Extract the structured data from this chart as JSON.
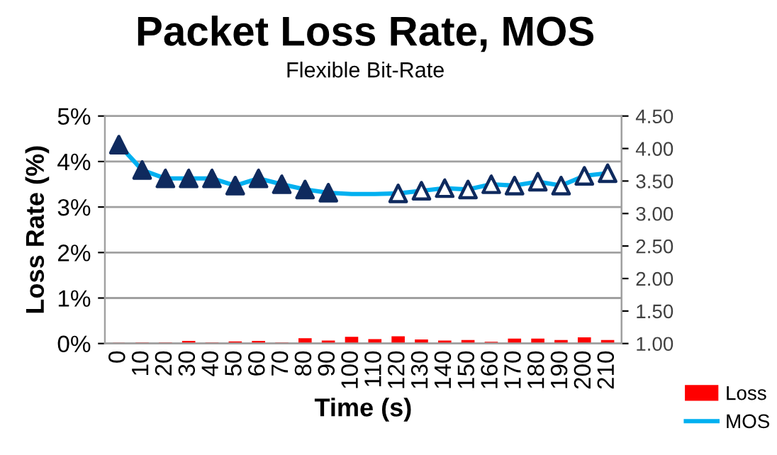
{
  "chart_data": {
    "type": "bar",
    "title": "Packet Loss Rate, MOS",
    "subtitle": "Flexible Bit-Rate",
    "xlabel": "Time (s)",
    "ylabel": "Loss Rate (%)",
    "categories": [
      "0",
      "10",
      "20",
      "30",
      "40",
      "50",
      "60",
      "70",
      "80",
      "90",
      "100",
      "110",
      "120",
      "130",
      "140",
      "150",
      "160",
      "170",
      "180",
      "190",
      "200",
      "210"
    ],
    "series": [
      {
        "name": "Loss",
        "color": "#ff0000",
        "values": [
          0,
          0.01,
          0.01,
          0.04,
          0.01,
          0.03,
          0.04,
          0.01,
          0.1,
          0.05,
          0.13,
          0.08,
          0.14,
          0.07,
          0.05,
          0.06,
          0.02,
          0.09,
          0.09,
          0.06,
          0.12,
          0.06
        ]
      },
      {
        "name": "MOS",
        "type": "line",
        "axis": "y2",
        "color": "#00b0f0",
        "marker": "none",
        "values": [
          4.06,
          3.67,
          3.54,
          3.54,
          3.54,
          3.43,
          3.54,
          3.45,
          3.37,
          3.32,
          3.3,
          3.3,
          3.31,
          3.35,
          3.39,
          3.37,
          3.45,
          3.43,
          3.49,
          3.43,
          3.58,
          3.62
        ]
      },
      {
        "type": "scatter",
        "axis": "y2",
        "color": "#0f2a5e",
        "marker": "triangle",
        "values": [
          4.06,
          3.67,
          3.54,
          3.54,
          3.54,
          3.43,
          3.54,
          3.45,
          3.37,
          3.32,
          null,
          null,
          null,
          null,
          null,
          null,
          null,
          null,
          null,
          null,
          null,
          null
        ]
      },
      {
        "type": "scatter",
        "axis": "y2",
        "color": "#ffffff",
        "marker": "triangle",
        "values": [
          null,
          null,
          null,
          null,
          null,
          null,
          null,
          null,
          null,
          null,
          null,
          null,
          3.31,
          3.35,
          3.39,
          3.37,
          3.45,
          3.43,
          3.49,
          3.43,
          3.58,
          3.62
        ]
      }
    ],
    "ylim": [
      0,
      5
    ],
    "yticks": [
      {
        "value": 0,
        "label": "0%"
      },
      {
        "value": 1,
        "label": "1%"
      },
      {
        "value": 2,
        "label": "2%"
      },
      {
        "value": 3,
        "label": "3%"
      },
      {
        "value": 4,
        "label": "4%"
      },
      {
        "value": 5,
        "label": "5%"
      }
    ],
    "y2lim": [
      1,
      4.5
    ],
    "y2ticks": [
      {
        "value": 1,
        "label": "1.00"
      },
      {
        "value": 1.5,
        "label": "1.50"
      },
      {
        "value": 2,
        "label": "2.00"
      },
      {
        "value": 2.5,
        "label": "2.50"
      },
      {
        "value": 3,
        "label": "3.00"
      },
      {
        "value": 3.5,
        "label": "3.50"
      },
      {
        "value": 4,
        "label": "4.00"
      },
      {
        "value": 4.5,
        "label": "4.50"
      }
    ],
    "grid": "y",
    "legend": "right"
  }
}
